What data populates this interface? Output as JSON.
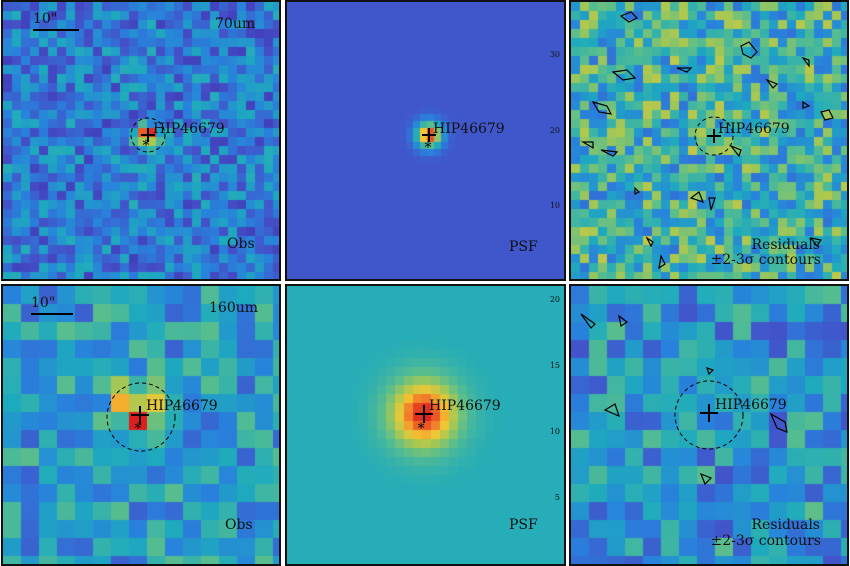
{
  "figure": {
    "source_name": "HIP46679",
    "scale_label": "10\"",
    "rows": [
      {
        "band": "70um",
        "obs_label": "Obs",
        "psf_label": "PSF",
        "residual_label": "Residuals",
        "contour_label": "±2-3σ contours",
        "psf_ticks": [
          "30",
          "20",
          "10"
        ]
      },
      {
        "band": "160um",
        "obs_label": "Obs",
        "psf_label": "PSF",
        "residual_label": "Residuals",
        "contour_label": "±2-3σ contours",
        "psf_ticks": [
          "20",
          "15",
          "10",
          "5"
        ]
      }
    ]
  },
  "colors": {
    "frame": "#111111",
    "marker": "#000000",
    "psf_bg_top": "#4a6fc2",
    "psf_bg_bottom": "#5ab3a6"
  }
}
